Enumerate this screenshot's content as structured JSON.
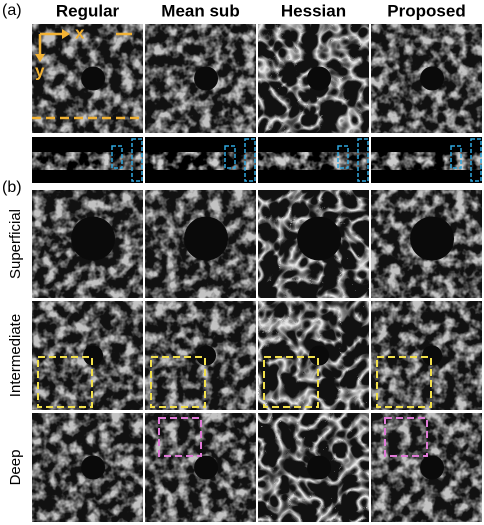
{
  "panel_a": {
    "label": "(a)",
    "axes": {
      "x": "x",
      "y": "y"
    }
  },
  "columns": [
    "Regular",
    "Mean sub",
    "Hessian",
    "Proposed"
  ],
  "panel_b": {
    "label": "(b)",
    "rows": [
      "Superficial",
      "Intermediate",
      "Deep"
    ]
  }
}
